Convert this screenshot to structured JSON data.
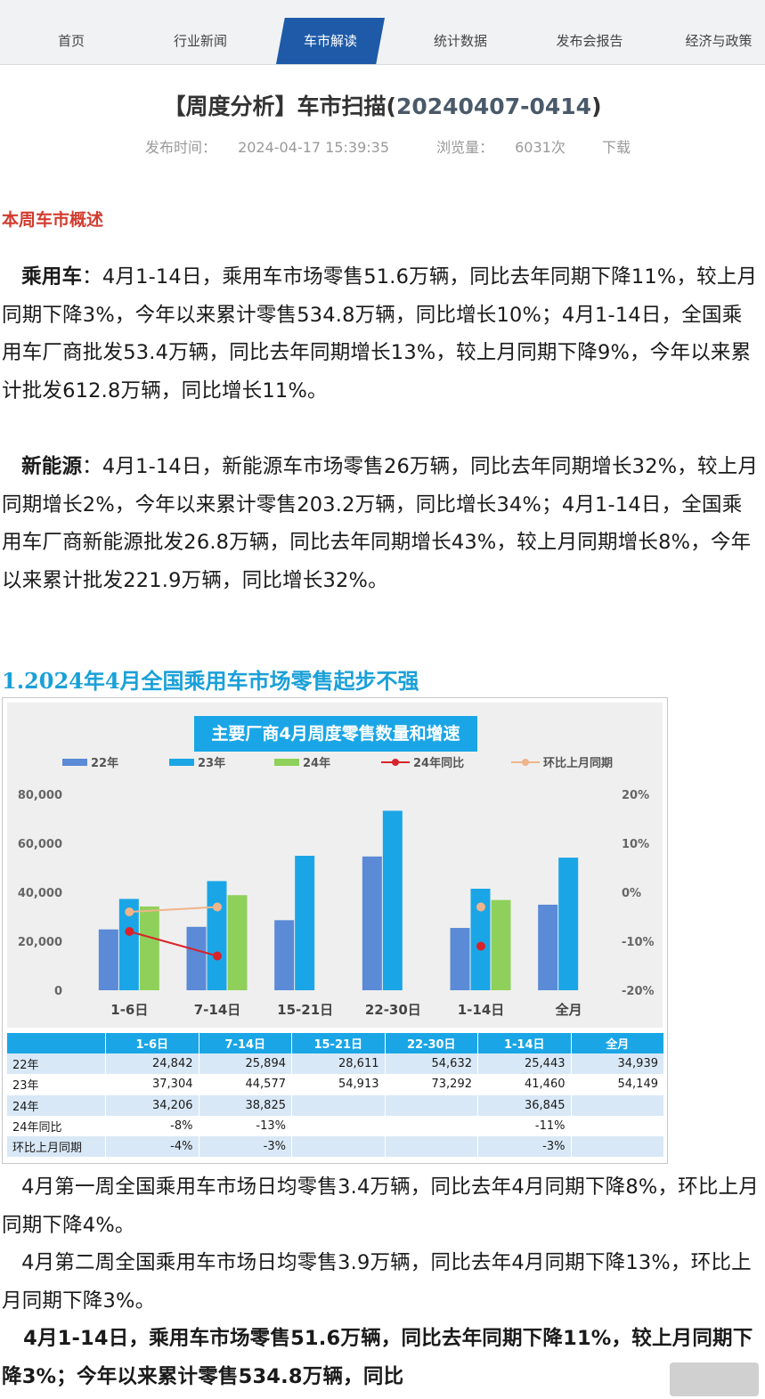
{
  "nav": {
    "tabs": [
      "首页",
      "行业新闻",
      "车市解读",
      "统计数据",
      "发布会报告",
      "经济与政策"
    ],
    "active_index": 2
  },
  "article": {
    "title_prefix": "【周度分析】车市扫描(",
    "title_code": "20240407-0414",
    "title_suffix": ")",
    "publish_label": "发布时间：",
    "publish_time": "2024-04-17 15:39:35",
    "views_label": "浏览量：",
    "views": "6031次",
    "download": "下载"
  },
  "overview": {
    "heading": "本周车市概述",
    "p1_label": "乘用车",
    "p1_text": "：4月1-14日，乘用车市场零售51.6万辆，同比去年同期下降11%，较上月同期下降3%，今年以来累计零售534.8万辆，同比增长10%；4月1-14日，全国乘用车厂商批发53.4万辆，同比去年同期增长13%，较上月同期下降9%，今年以来累计批发612.8万辆，同比增长11%。",
    "p2_label": "新能源",
    "p2_text": "：4月1-14日，新能源车市场零售26万辆，同比去年同期增长32%，较上月同期增长2%，今年以来累计零售203.2万辆，同比增长34%；4月1-14日，全国乘用车厂商新能源批发26.8万辆，同比去年同期增长43%，较上月同期增长8%，今年以来累计批发221.9万辆，同比增长32%。"
  },
  "section1": {
    "heading": "1.2024年4月全国乘用车市场零售起步不强"
  },
  "chart_data": {
    "type": "bar",
    "title": "主要厂商4月周度零售数量和增速",
    "categories": [
      "1-6日",
      "7-14日",
      "15-21日",
      "22-30日",
      "1-14日",
      "全月"
    ],
    "series": [
      {
        "name": "22年",
        "type": "bar",
        "color": "#5b8ad6",
        "values": [
          24842,
          25894,
          28611,
          54632,
          25443,
          34939
        ]
      },
      {
        "name": "23年",
        "type": "bar",
        "color": "#1aa6e6",
        "values": [
          37304,
          44577,
          54913,
          73292,
          41460,
          54149
        ]
      },
      {
        "name": "24年",
        "type": "bar",
        "color": "#8fd05a",
        "values": [
          34206,
          38825,
          null,
          null,
          36845,
          null
        ]
      },
      {
        "name": "24年同比",
        "type": "line",
        "axis": "right",
        "color": "#d8232a",
        "values": [
          -8,
          -13,
          null,
          null,
          -11,
          null
        ]
      },
      {
        "name": "环比上月同期",
        "type": "line",
        "axis": "right",
        "color": "#f0b48a",
        "values": [
          -4,
          -3,
          null,
          null,
          -3,
          null
        ]
      }
    ],
    "y_left": {
      "ylim": [
        0,
        80000
      ],
      "ticks": [
        "0",
        "20,000",
        "40,000",
        "60,000",
        "80,000"
      ]
    },
    "y_right": {
      "ylim": [
        -20,
        20
      ],
      "ticks": [
        "-20%",
        "-10%",
        "0%",
        "10%",
        "20%"
      ]
    },
    "legend_position": "top",
    "grid": false
  },
  "table": {
    "headers": [
      "",
      "1-6日",
      "7-14日",
      "15-21日",
      "22-30日",
      "1-14日",
      "全月"
    ],
    "rows": [
      [
        "22年",
        "24,842",
        "25,894",
        "28,611",
        "54,632",
        "25,443",
        "34,939"
      ],
      [
        "23年",
        "37,304",
        "44,577",
        "54,913",
        "73,292",
        "41,460",
        "54,149"
      ],
      [
        "24年",
        "34,206",
        "38,825",
        "",
        "",
        "36,845",
        ""
      ],
      [
        "24年同比",
        "-8%",
        "-13%",
        "",
        "",
        "-11%",
        ""
      ],
      [
        "环比上月同期",
        "-4%",
        "-3%",
        "",
        "",
        "-3%",
        ""
      ]
    ]
  },
  "summary": {
    "p1": "4月第一周全国乘用车市场日均零售3.4万辆，同比去年4月同期下降8%，环比上月同期下降4%。",
    "p2": "4月第二周全国乘用车市场日均零售3.9万辆，同比去年4月同期下降13%，环比上月同期下降3%。",
    "p3": "4月1-14日，乘用车市场零售51.6万辆，同比去年同期下降11%，较上月同期下降3%；今年以来累计零售534.8万辆，同比"
  }
}
